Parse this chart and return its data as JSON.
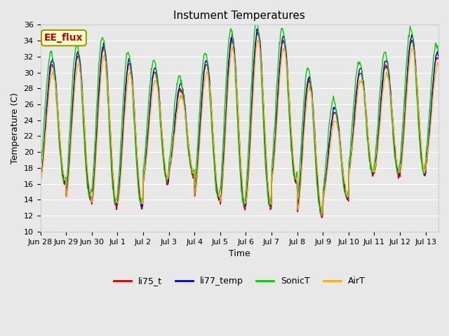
{
  "title": "Instument Temperatures",
  "xlabel": "Time",
  "ylabel": "Temperature (C)",
  "ylim": [
    10,
    36
  ],
  "annotation_text": "EE_flux",
  "annotation_bg": "#ffffcc",
  "annotation_border": "#999900",
  "annotation_text_color": "#cc0000",
  "bg_color": "#e8e8e8",
  "grid_color": "#ffffff",
  "legend_labels": [
    "li75_t",
    "li77_temp",
    "SonicT",
    "AirT"
  ],
  "legend_colors": [
    "#cc0000",
    "#0000cc",
    "#00cc00",
    "#ffaa00"
  ],
  "x_tick_labels": [
    "Jun 28",
    "Jun 29",
    "Jun 30",
    "Jul 1",
    "Jul 2",
    "Jul 3",
    "Jul 4",
    "Jul 5",
    "Jul 6",
    "Jul 7",
    "Jul 8",
    "Jul 9",
    "Jul 10",
    "Jul 11",
    "Jul 12",
    "Jul 13"
  ],
  "day_peaks": [
    31,
    32,
    33,
    31,
    30,
    28,
    31,
    34,
    35,
    34,
    29,
    25,
    30,
    31,
    34,
    32
  ],
  "day_troughs": [
    16,
    14,
    13,
    13,
    16,
    17,
    14,
    13,
    13,
    16,
    12,
    14,
    17,
    17,
    17,
    18
  ],
  "num_points": 744,
  "total_days": 15.5
}
